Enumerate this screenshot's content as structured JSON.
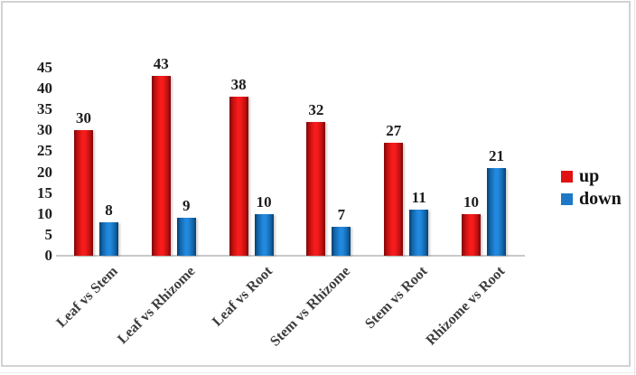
{
  "chart_data": {
    "type": "bar",
    "title": "",
    "xlabel": "",
    "ylabel": "",
    "categories": [
      "Leaf vs Stem",
      "Leaf vs Rhizome",
      "Leaf vs Root",
      "Stem vs Rhizome",
      "Stem vs Root",
      "Rhizome vs Root"
    ],
    "series": [
      {
        "name": "up",
        "values": [
          30,
          43,
          38,
          32,
          27,
          10
        ],
        "color": "#f71b1b",
        "mid_color": "#c11010",
        "edge_color": "#7d0707",
        "swatch_color": "#e11212"
      },
      {
        "name": "down",
        "values": [
          8,
          9,
          10,
          7,
          11,
          21
        ],
        "color": "#2289de",
        "mid_color": "#1268ad",
        "edge_color": "#0a3f6e",
        "swatch_color": "#1e78c8"
      }
    ],
    "ylim": [
      0,
      45
    ],
    "yticks": [
      0,
      5,
      10,
      15,
      20,
      25,
      30,
      35,
      40,
      45
    ],
    "grid": false,
    "legend_position": "right",
    "legend_labels": [
      "up",
      "down"
    ]
  },
  "colors": {
    "frame_border": "#d2d2d2",
    "axis_line": "#c9c9c9",
    "tick_text": "#1f1f1f",
    "category_text": "#3d3d3d",
    "background": "#ffffff"
  }
}
